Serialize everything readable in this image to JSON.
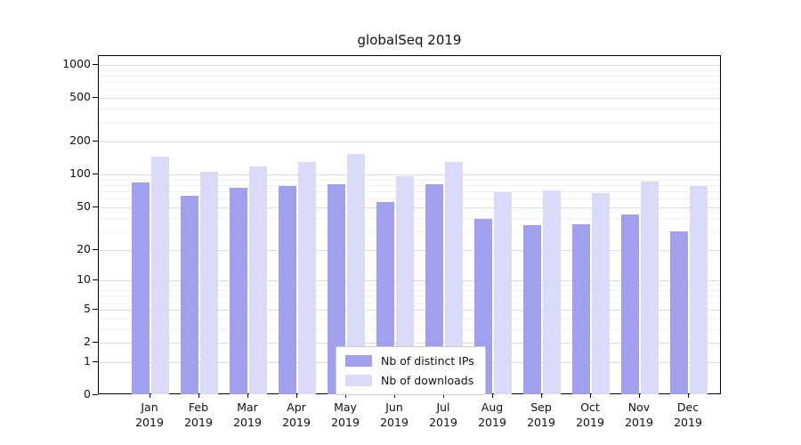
{
  "chart_data": {
    "type": "bar",
    "title": "globalSeq 2019",
    "categories": [
      "Jan",
      "Feb",
      "Mar",
      "Apr",
      "May",
      "Jun",
      "Jul",
      "Aug",
      "Sep",
      "Oct",
      "Nov",
      "Dec"
    ],
    "year": "2019",
    "series": [
      {
        "name": "Nb of distinct IPs",
        "color": "#a0a0ef",
        "values": [
          85,
          64,
          75,
          79,
          82,
          56,
          82,
          39,
          34,
          35,
          43,
          30
        ]
      },
      {
        "name": "Nb of downloads",
        "color": "#d9d9f8",
        "values": [
          146,
          106,
          118,
          130,
          155,
          97,
          130,
          69,
          71,
          67,
          86,
          78
        ]
      }
    ],
    "yticks": [
      0,
      1,
      2,
      5,
      10,
      20,
      50,
      100,
      200,
      500,
      1000
    ],
    "yscale": "log1p",
    "ylim": [
      0,
      1000
    ],
    "grid": true,
    "legend_position": "bottom-center",
    "colors": {
      "frame": "#000000",
      "grid_major": "#dcdcdc",
      "grid_minor": "#efefef",
      "text": "#111111",
      "background": "#ffffff"
    }
  }
}
